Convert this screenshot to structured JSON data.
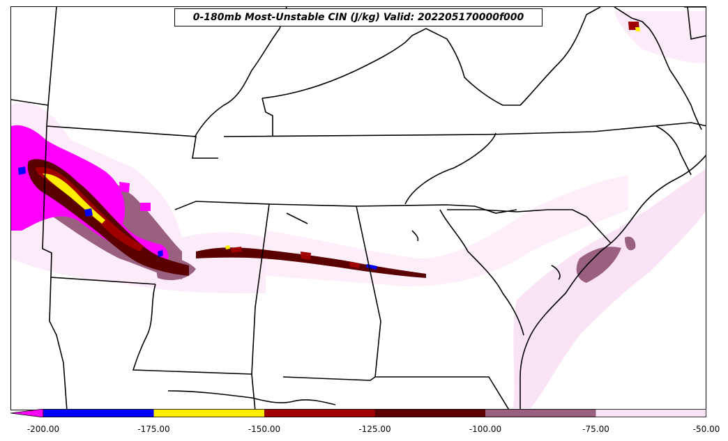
{
  "title": "0-180mb Most-Unstable CIN (J/kg) Valid: 202205170000f000",
  "colorbar": {
    "ticks": [
      "-200.00",
      "-175.00",
      "-150.00",
      "-125.00",
      "-100.00",
      "-75.00",
      "-50.00"
    ],
    "colors": [
      "#0000ff",
      "#ffee00",
      "#a00000",
      "#5a0000",
      "#9a6080",
      "#fbe3f6"
    ],
    "under_color": "#ff00ff"
  },
  "map": {
    "fill_colors": {
      "lt_m75": "#fbe3f6",
      "m100_m75": "#9a6080",
      "m125_m100": "#5a0000",
      "m150_m125": "#a00000",
      "m175_m150": "#ffee00",
      "m200_m175": "#0000ff",
      "lt_m200": "#ff00ff"
    }
  }
}
